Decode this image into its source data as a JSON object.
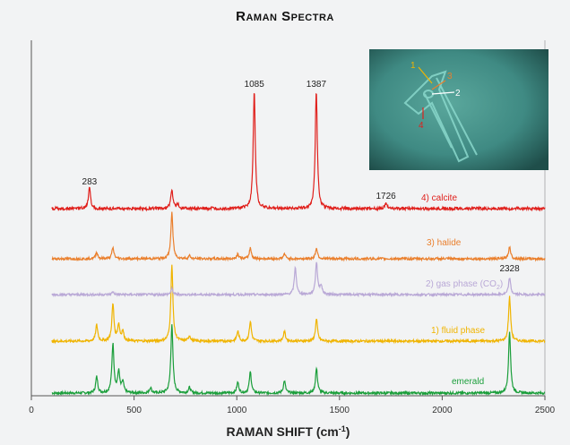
{
  "title": "Raman Spectra",
  "chart_data": {
    "type": "line",
    "title": "Raman Spectra",
    "xlabel": "RAMAN SHIFT (cm",
    "xlabel_sup": "-1",
    "xlabel_close": ")",
    "xlim": [
      0,
      2500
    ],
    "xticks": [
      0,
      500,
      1000,
      1500,
      2000,
      2500
    ],
    "yaxis": "offset intensity (arbitrary, no ticks)",
    "grid": false,
    "series": [
      {
        "name": "emerald",
        "color": "#1a9e3a",
        "peaks": [
          [
            318,
            0.33
          ],
          [
            397,
            1.0
          ],
          [
            425,
            0.43
          ],
          [
            445,
            0.22
          ],
          [
            580,
            0.11
          ],
          [
            684,
            1.4
          ],
          [
            770,
            0.11
          ],
          [
            1005,
            0.22
          ],
          [
            1066,
            0.43
          ],
          [
            1232,
            0.25
          ],
          [
            1388,
            0.5
          ],
          [
            2328,
            1.25
          ]
        ]
      },
      {
        "name": "1) fluid phase",
        "color": "#f0b400",
        "peaks": [
          [
            318,
            0.33
          ],
          [
            397,
            0.75
          ],
          [
            425,
            0.33
          ],
          [
            445,
            0.2
          ],
          [
            684,
            1.55
          ],
          [
            770,
            0.11
          ],
          [
            1005,
            0.2
          ],
          [
            1066,
            0.4
          ],
          [
            1232,
            0.2
          ],
          [
            1388,
            0.45
          ],
          [
            2328,
            0.9
          ]
        ]
      },
      {
        "name": "2) gas phase (CO2)",
        "label_prefix": "2) gas phase (CO",
        "label_sub": "2",
        "label_suffix": ")",
        "color": "#b9a8d6",
        "peaks": [
          [
            397,
            0.06
          ],
          [
            684,
            0.13
          ],
          [
            1285,
            0.6
          ],
          [
            1388,
            0.72
          ],
          [
            1410,
            0.2
          ],
          [
            2328,
            0.38
          ]
        ]
      },
      {
        "name": "3) halide",
        "color": "#ea7f2c",
        "peaks": [
          [
            318,
            0.13
          ],
          [
            397,
            0.22
          ],
          [
            684,
            0.93
          ],
          [
            770,
            0.06
          ],
          [
            1005,
            0.1
          ],
          [
            1066,
            0.22
          ],
          [
            1232,
            0.1
          ],
          [
            1388,
            0.22
          ],
          [
            2328,
            0.25
          ]
        ]
      },
      {
        "name": "4) calcite",
        "color": "#e0201c",
        "peaks": [
          [
            283,
            0.37
          ],
          [
            684,
            0.33
          ],
          [
            712,
            0.08
          ],
          [
            1085,
            2.0
          ],
          [
            1387,
            2.0
          ],
          [
            1726,
            0.08
          ]
        ]
      }
    ],
    "annotations": [
      {
        "text": "283",
        "x": 283
      },
      {
        "text": "1085",
        "x": 1085
      },
      {
        "text": "1387",
        "x": 1387
      },
      {
        "text": "1726",
        "x": 1726
      },
      {
        "text": "2328",
        "x": 2328
      }
    ]
  },
  "inset": {
    "description_labels": [
      "1",
      "2",
      "3",
      "4"
    ],
    "colors": {
      "bg": "#3f8a83",
      "label_1": "#f0b400",
      "label_2": "#ffffff",
      "label_3": "#ea7f2c",
      "label_4": "#e0201c"
    }
  }
}
